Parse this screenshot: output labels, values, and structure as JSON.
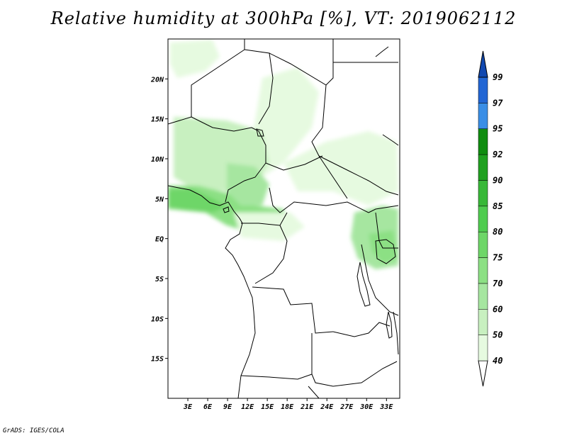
{
  "title": "Relative humidity at 300hPa [%], VT: 2019062112",
  "credit": "GrADS: IGES/COLA",
  "chart_data": {
    "type": "heatmap",
    "variable": "Relative humidity",
    "level": "300hPa",
    "units": "%",
    "valid_time": "2019062112",
    "lon_range": [
      0,
      35
    ],
    "lat_range": [
      -20,
      25
    ],
    "lat_labels": [
      "20N",
      "15N",
      "10N",
      "5N",
      "EQ",
      "5S",
      "10S",
      "15S"
    ],
    "lat_values": [
      20,
      15,
      10,
      5,
      0,
      -5,
      -10,
      -15
    ],
    "lon_labels": [
      "3E",
      "6E",
      "9E",
      "12E",
      "15E",
      "18E",
      "21E",
      "24E",
      "27E",
      "30E",
      "33E"
    ],
    "lon_values": [
      3,
      6,
      9,
      12,
      15,
      18,
      21,
      24,
      27,
      30,
      33
    ],
    "colorbar_labels": [
      "40",
      "50",
      "60",
      "70",
      "75",
      "80",
      "85",
      "90",
      "92",
      "95",
      "97",
      "99"
    ],
    "colorbar_colors": [
      "#ffffff",
      "#e6fae0",
      "#c8f0c0",
      "#a6e6a0",
      "#8ce084",
      "#6ed668",
      "#50cc50",
      "#38b838",
      "#20a020",
      "#108c10",
      "#3a8ee6",
      "#2266d4",
      "#1148b0"
    ]
  }
}
